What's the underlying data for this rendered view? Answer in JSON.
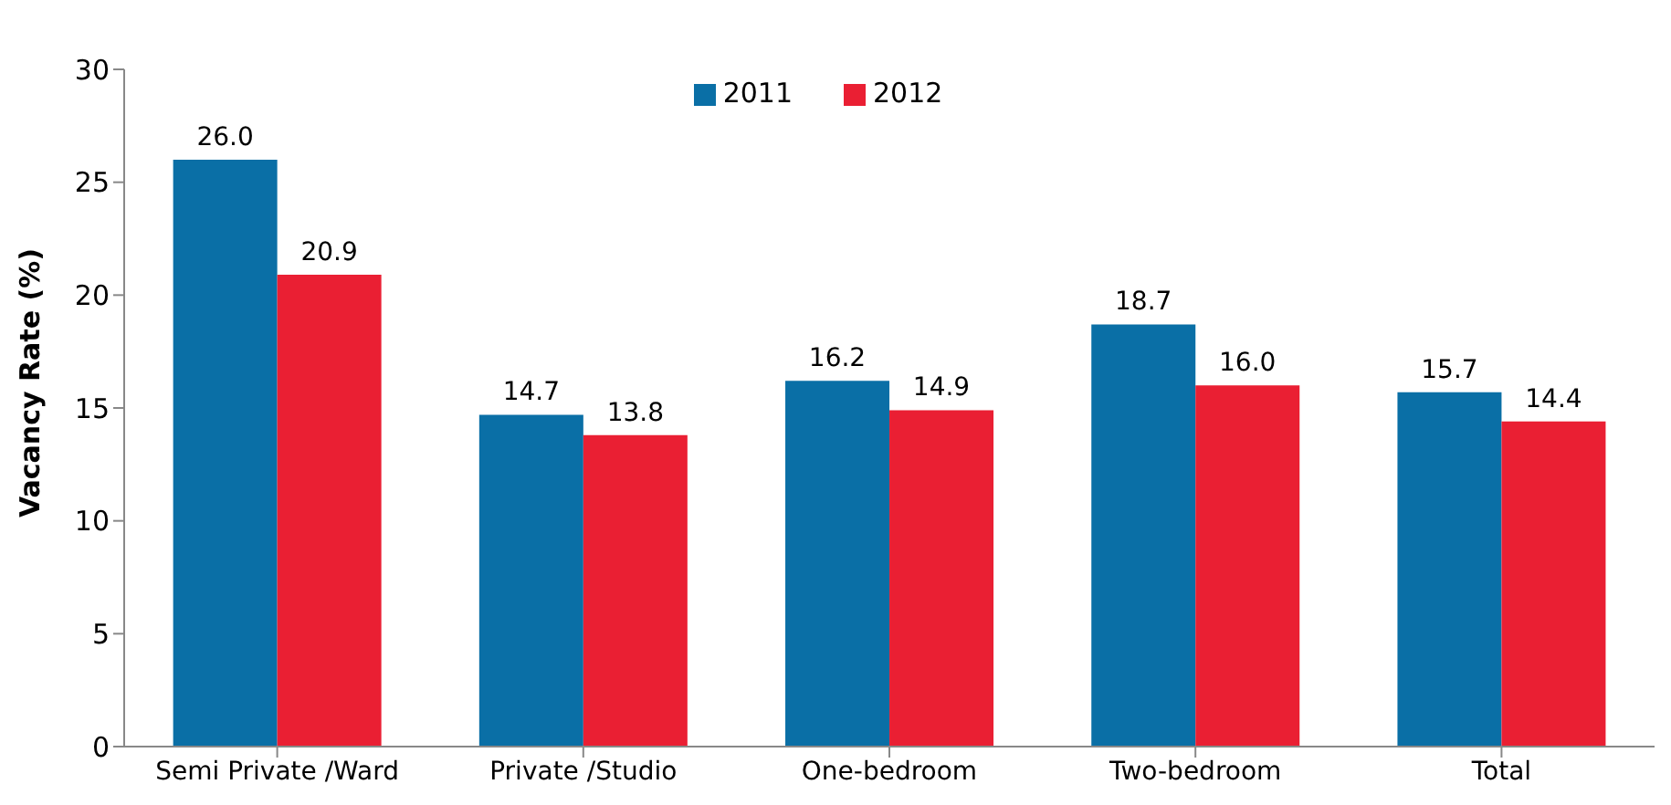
{
  "chart_data": {
    "type": "bar",
    "ylabel": "Vacancy Rate (%)",
    "categories": [
      "Semi Private /Ward",
      "Private /Studio",
      "One-bedroom",
      "Two-bedroom",
      "Total"
    ],
    "series": [
      {
        "name": "2011",
        "color": "#0a6fa6",
        "values": [
          26.0,
          14.7,
          16.2,
          18.7,
          15.7
        ],
        "value_labels": [
          "26.0",
          "14.7",
          "16.2",
          "18.7",
          "15.7"
        ]
      },
      {
        "name": "2012",
        "color": "#ea1f33",
        "values": [
          20.9,
          13.8,
          14.9,
          16.0,
          14.4
        ],
        "value_labels": [
          "20.9",
          "13.8",
          "14.9",
          "16.0",
          "14.4"
        ]
      }
    ],
    "ylim": [
      0,
      30
    ],
    "yticks": [
      0,
      5,
      10,
      15,
      20,
      25,
      30
    ],
    "grid": false,
    "legend": "top"
  }
}
